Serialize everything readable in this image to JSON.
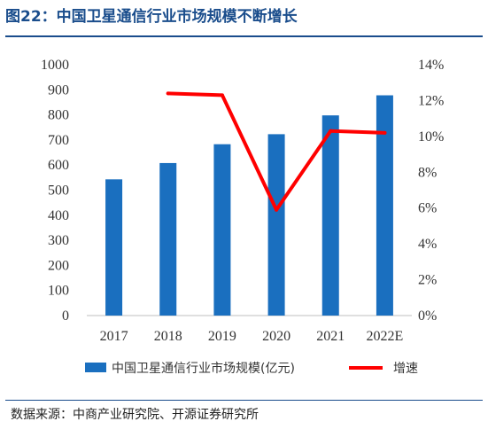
{
  "title": "图22：中国卫星通信行业市场规模不断增长",
  "source": "数据来源：中商产业研究院、开源证券研究所",
  "colors": {
    "bar": "#1a6fbf",
    "line": "#ff0000",
    "accent": "#1a4d8c"
  },
  "chart_data": {
    "type": "bar+line",
    "categories": [
      "2017",
      "2018",
      "2019",
      "2020",
      "2021",
      "2022E"
    ],
    "series": [
      {
        "name": "中国卫星通信行业市场规模(亿元)",
        "type": "bar",
        "axis": "left",
        "values": [
          543,
          608,
          683,
          723,
          798,
          878
        ]
      },
      {
        "name": "增速",
        "type": "line",
        "axis": "right",
        "values": [
          null,
          12.4,
          12.3,
          5.9,
          10.3,
          10.2
        ]
      }
    ],
    "left_axis": {
      "min": 0,
      "max": 1000,
      "step": 100,
      "ticks": [
        "0",
        "100",
        "200",
        "300",
        "400",
        "500",
        "600",
        "700",
        "800",
        "900",
        "1000"
      ]
    },
    "right_axis": {
      "min": 0,
      "max": 14,
      "step": 2,
      "ticks": [
        "0%",
        "2%",
        "4%",
        "6%",
        "8%",
        "10%",
        "12%",
        "14%"
      ]
    },
    "legend_position": "bottom",
    "grid": false
  }
}
